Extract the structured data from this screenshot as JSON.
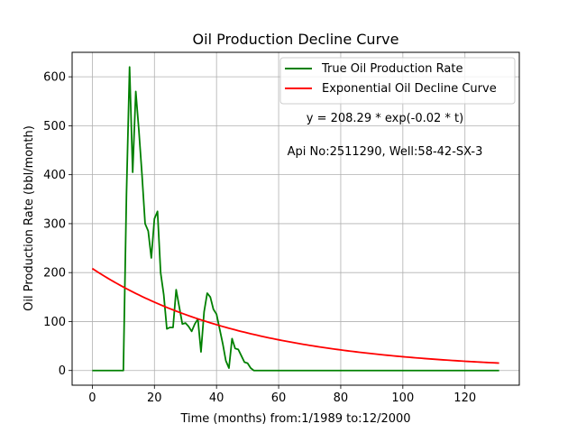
{
  "chart_data": {
    "type": "line",
    "title": "Oil Production Decline Curve",
    "xlabel": "Time (months) from:1/1989 to:12/2000",
    "ylabel": "Oil Production Rate (bbl/month)",
    "xlim": [
      -6.5,
      137.5
    ],
    "ylim": [
      -30,
      650
    ],
    "xticks": [
      0,
      20,
      40,
      60,
      80,
      100,
      120
    ],
    "yticks": [
      0,
      100,
      200,
      300,
      400,
      500,
      600
    ],
    "grid": true,
    "legend_position": "top-right",
    "series": [
      {
        "name": "True Oil Production Rate",
        "color": "#008000",
        "x": [
          0,
          1,
          2,
          3,
          4,
          5,
          6,
          7,
          8,
          9,
          10,
          11,
          12,
          13,
          14,
          15,
          16,
          17,
          18,
          19,
          20,
          21,
          22,
          23,
          24,
          25,
          26,
          27,
          28,
          29,
          30,
          31,
          32,
          33,
          34,
          35,
          36,
          37,
          38,
          39,
          40,
          41,
          42,
          43,
          44,
          45,
          46,
          47,
          48,
          49,
          50,
          51,
          52,
          53,
          131
        ],
        "y": [
          0,
          0,
          0,
          0,
          0,
          0,
          0,
          0,
          0,
          0,
          0,
          360,
          620,
          405,
          570,
          490,
          400,
          300,
          285,
          230,
          310,
          325,
          200,
          155,
          85,
          88,
          88,
          165,
          130,
          95,
          97,
          90,
          80,
          95,
          105,
          38,
          120,
          158,
          150,
          125,
          115,
          85,
          55,
          20,
          5,
          65,
          45,
          43,
          30,
          17,
          15,
          5,
          0,
          0,
          0
        ]
      },
      {
        "name": "Exponential Oil Decline Curve",
        "color": "#ff0000",
        "model": {
          "a": 208.29,
          "b": 0.02
        },
        "x_start": 0,
        "x_end": 131
      }
    ],
    "annotations": [
      "y = 208.29 * exp(-0.02 * t)",
      "Api No:2511290, Well:58-42-SX-3"
    ]
  }
}
